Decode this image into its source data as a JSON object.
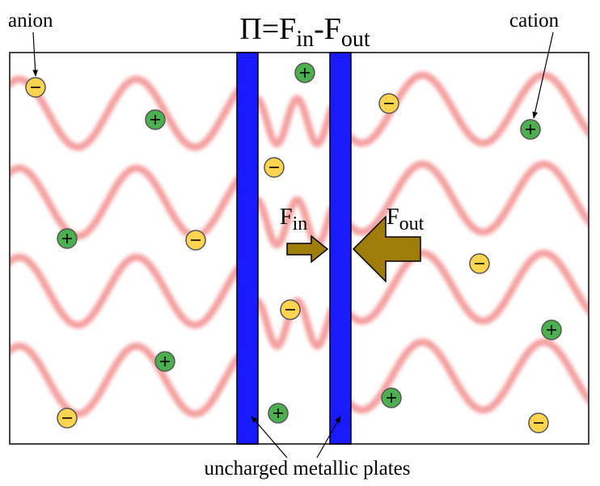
{
  "title": {
    "lead": "Π=F",
    "sub1": "in",
    "mid": "-F",
    "sub2": "out"
  },
  "labels": {
    "anion": "anion",
    "cation": "cation",
    "plates": "uncharged metallic plates"
  },
  "forces": {
    "in": {
      "base": "F",
      "sub": "in"
    },
    "out": {
      "base": "F",
      "sub": "out"
    }
  }
}
